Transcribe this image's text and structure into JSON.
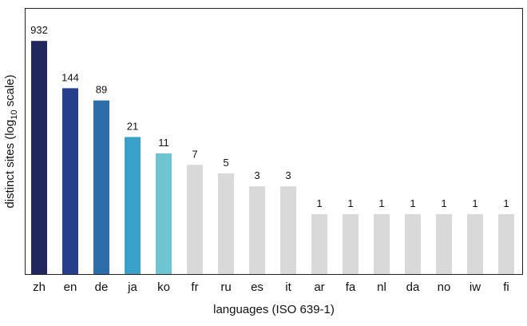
{
  "chart_data": {
    "type": "bar",
    "scale": "log10",
    "xlabel": "languages (ISO 639-1)",
    "ylabel": {
      "prefix": "distinct sites (log",
      "subscript": "10",
      "suffix": " scale)"
    },
    "categories": [
      "zh",
      "en",
      "de",
      "ja",
      "ko",
      "fr",
      "ru",
      "es",
      "it",
      "ar",
      "fa",
      "nl",
      "da",
      "no",
      "iw",
      "fi"
    ],
    "values": [
      932,
      144,
      89,
      21,
      11,
      7,
      5,
      3,
      3,
      1,
      1,
      1,
      1,
      1,
      1,
      1
    ],
    "labels": [
      "932",
      "144",
      "89",
      "21",
      "11",
      "7",
      "5",
      "3",
      "3",
      "1",
      "1",
      "1",
      "1",
      "1",
      "1",
      "1"
    ],
    "colors": [
      "#22275e",
      "#253f8d",
      "#2c6eaa",
      "#3aa1c9",
      "#6ec5d1",
      "#d9d9d9",
      "#d9d9d9",
      "#d9d9d9",
      "#d9d9d9",
      "#d9d9d9",
      "#d9d9d9",
      "#d9d9d9",
      "#d9d9d9",
      "#d9d9d9",
      "#d9d9d9",
      "#d9d9d9"
    ],
    "grid": false,
    "legend": "none"
  }
}
